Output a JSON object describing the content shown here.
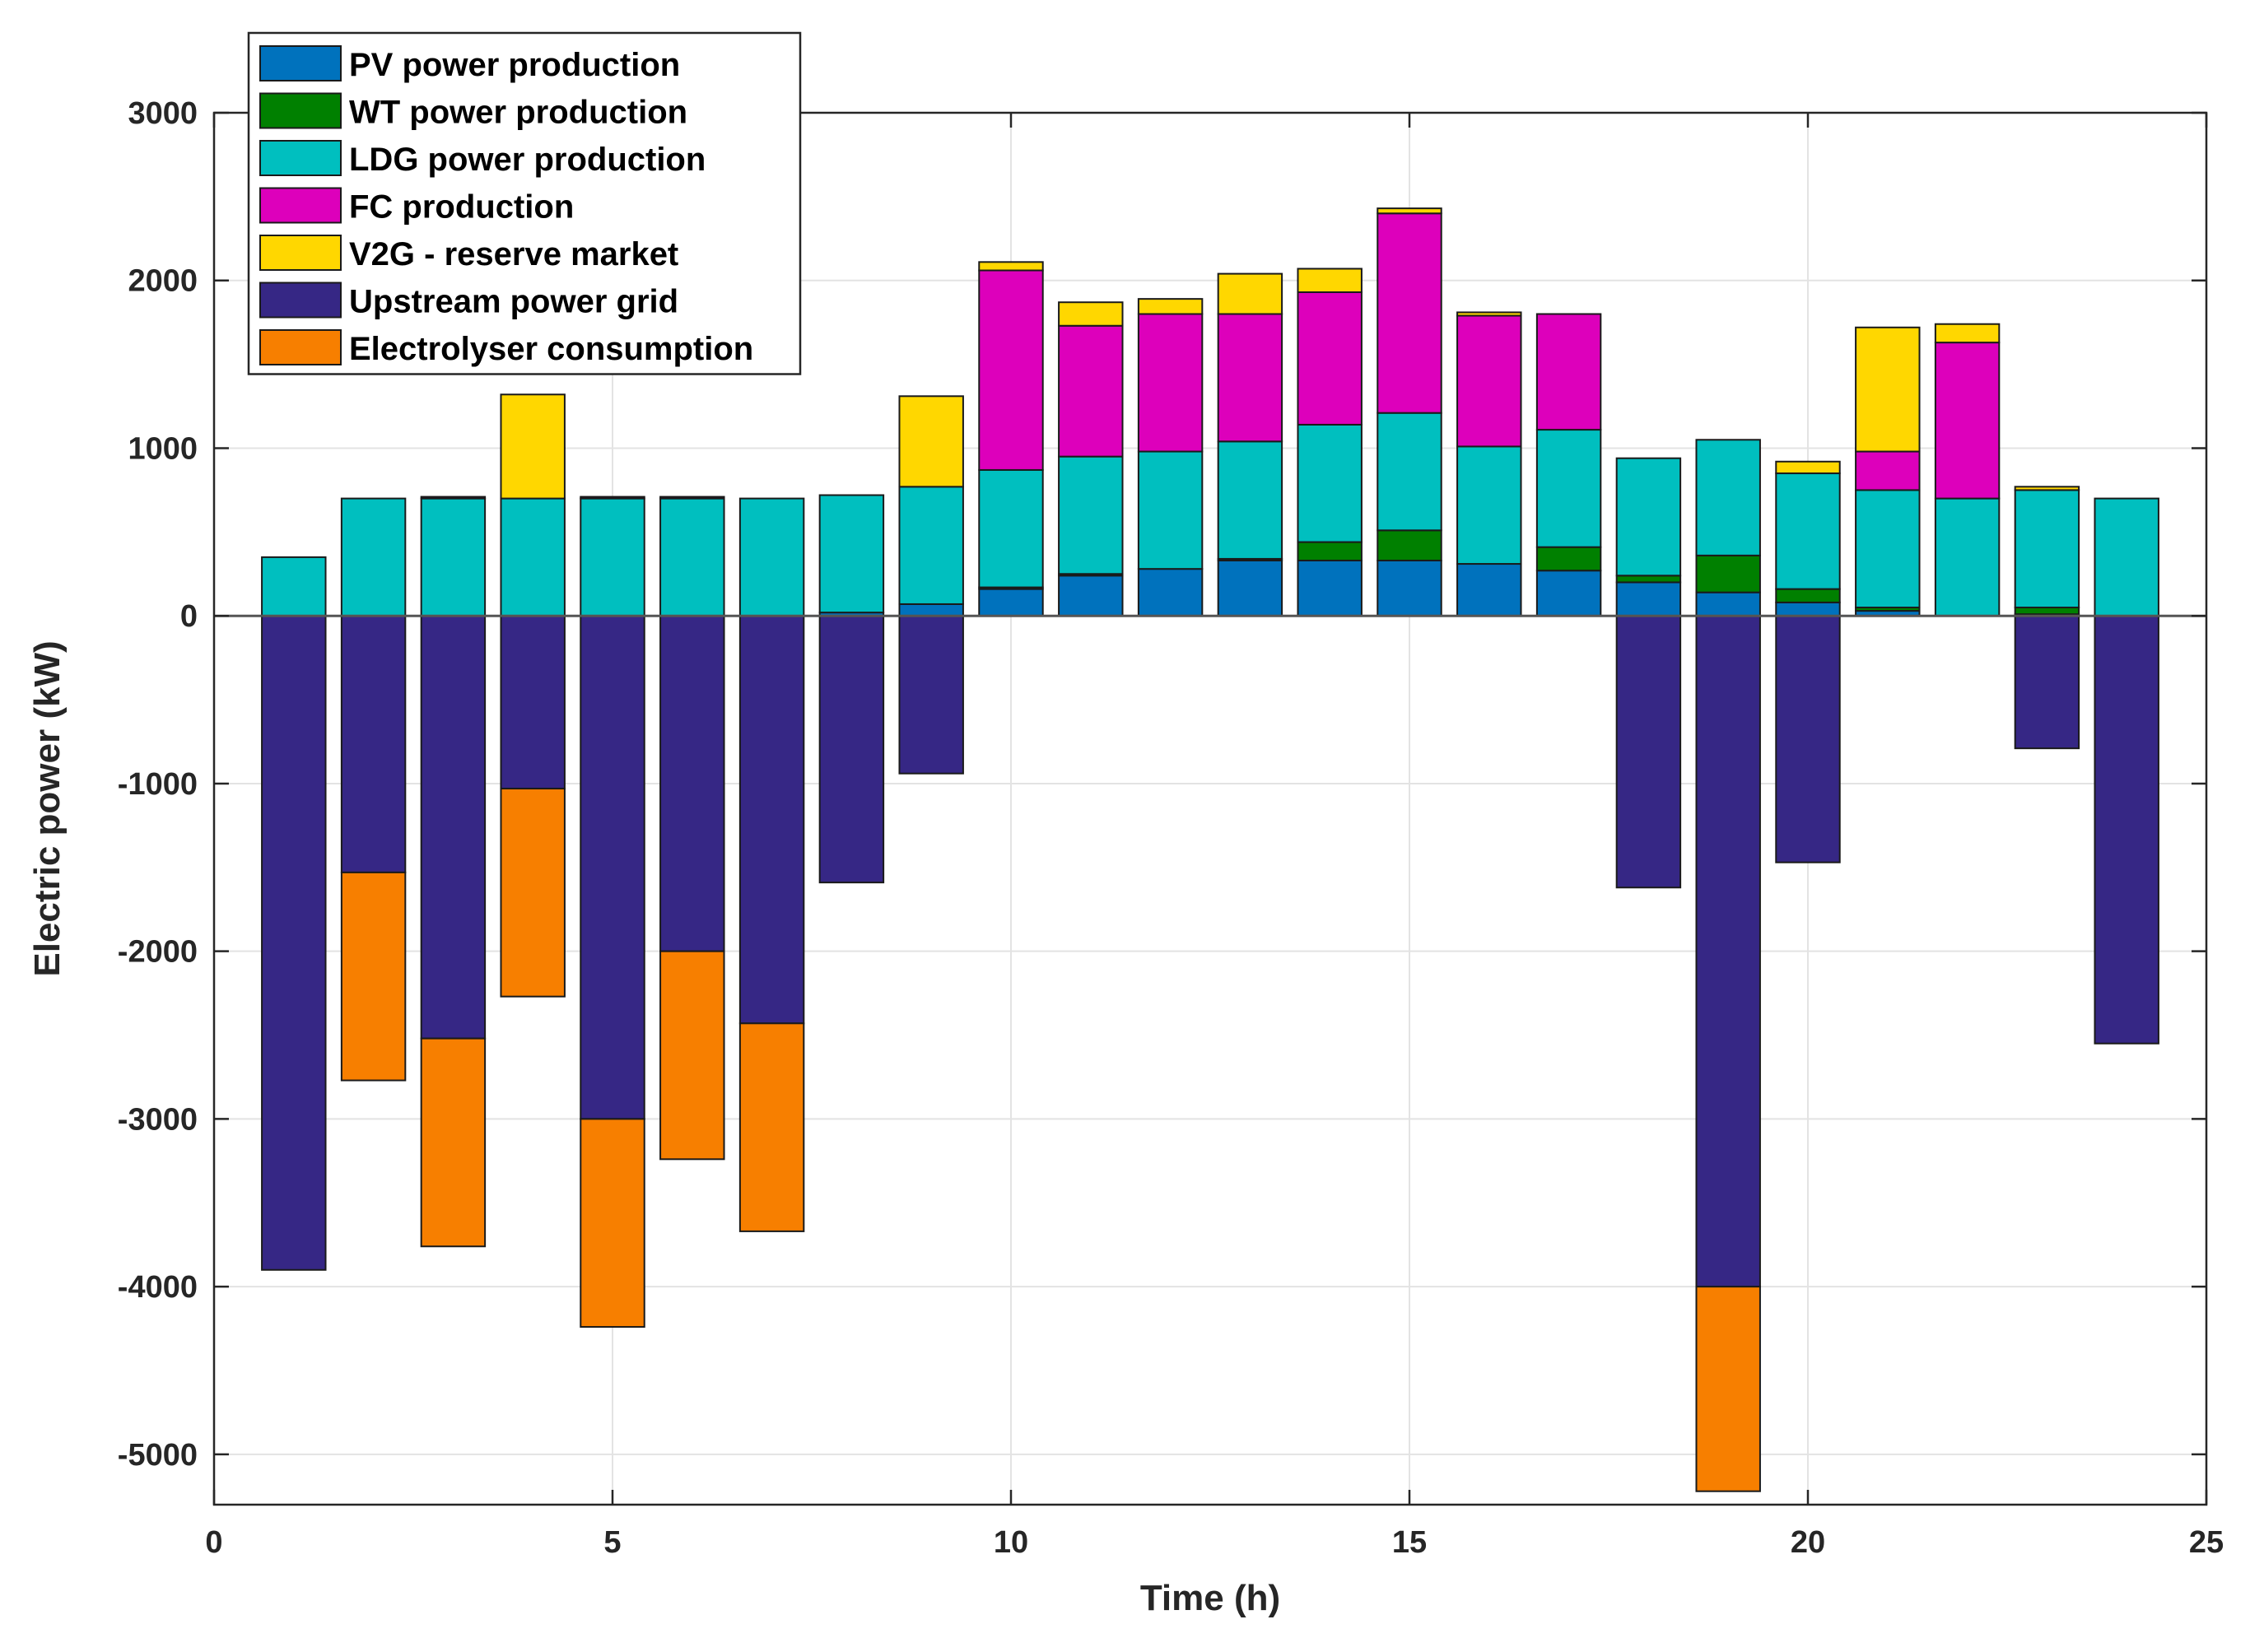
{
  "chart_data": {
    "type": "bar",
    "stacked": true,
    "xlabel": "Time (h)",
    "ylabel": "Electric power (kW)",
    "xlim": [
      0,
      25
    ],
    "ylim": [
      -5300,
      3000
    ],
    "xticks": [
      0,
      5,
      10,
      15,
      20,
      25
    ],
    "yticks": [
      3000,
      2000,
      1000,
      0,
      -1000,
      -2000,
      -3000,
      -4000,
      -5000
    ],
    "grid": true,
    "legend_position": "top-left",
    "x": [
      1,
      2,
      3,
      4,
      5,
      6,
      7,
      8,
      9,
      10,
      11,
      12,
      13,
      14,
      15,
      16,
      17,
      18,
      19,
      20,
      21,
      22,
      23,
      24
    ],
    "series": [
      {
        "name": "PV power production",
        "color": "#0072bd",
        "values": [
          0,
          0,
          0,
          0,
          0,
          0,
          0,
          20,
          70,
          160,
          240,
          280,
          330,
          330,
          330,
          310,
          270,
          200,
          140,
          80,
          30,
          0,
          10,
          0
        ]
      },
      {
        "name": "WT power production",
        "color": "#008000",
        "values": [
          0,
          0,
          0,
          0,
          0,
          0,
          0,
          0,
          0,
          10,
          10,
          0,
          10,
          110,
          180,
          0,
          140,
          40,
          220,
          80,
          20,
          0,
          40,
          0
        ]
      },
      {
        "name": "LDG power production",
        "color": "#00bfbf",
        "values": [
          350,
          700,
          700,
          700,
          700,
          700,
          700,
          700,
          700,
          700,
          700,
          700,
          700,
          700,
          700,
          700,
          700,
          700,
          690,
          690,
          700,
          700,
          700,
          700
        ]
      },
      {
        "name": "FC production",
        "color": "#dd00bb",
        "values": [
          0,
          0,
          10,
          0,
          10,
          10,
          0,
          0,
          0,
          1190,
          780,
          820,
          760,
          790,
          1190,
          780,
          690,
          0,
          0,
          0,
          230,
          930,
          0,
          0
        ]
      },
      {
        "name": "V2G - reserve market",
        "color": "#ffd700",
        "values": [
          0,
          0,
          0,
          620,
          0,
          0,
          0,
          0,
          540,
          50,
          140,
          90,
          240,
          140,
          30,
          20,
          0,
          0,
          0,
          70,
          740,
          110,
          20,
          0
        ]
      },
      {
        "name": "Upstream power grid",
        "color": "#362785",
        "values": [
          -3900,
          -1530,
          -2520,
          -1030,
          -3000,
          -2000,
          -2430,
          -1590,
          -940,
          0,
          0,
          0,
          0,
          0,
          0,
          0,
          0,
          -1620,
          -4000,
          -1470,
          0,
          0,
          -790,
          -2550
        ]
      },
      {
        "name": "Electrolyser consumption",
        "color": "#f77f00",
        "values": [
          0,
          -1240,
          -1240,
          -1240,
          -1240,
          -1240,
          -1240,
          0,
          0,
          0,
          0,
          0,
          0,
          0,
          0,
          0,
          0,
          0,
          -1220,
          0,
          0,
          0,
          0,
          0
        ]
      }
    ]
  }
}
